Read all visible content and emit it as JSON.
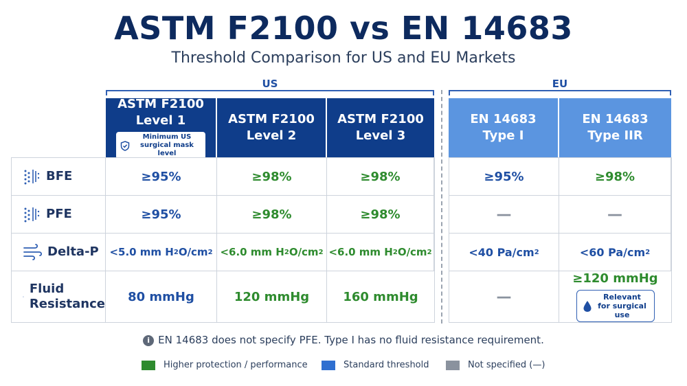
{
  "title": "ASTM F2100 vs EN 14683",
  "subtitle": "Threshold Comparison for US and EU Markets",
  "groups": {
    "us": "US",
    "eu": "EU"
  },
  "headers": [
    {
      "line1": "ASTM F2100",
      "line2": "Level 1",
      "badge": "Minimum US surgical mask level"
    },
    {
      "line1": "ASTM F2100",
      "line2": "Level 2"
    },
    {
      "line1": "ASTM F2100",
      "line2": "Level 3"
    },
    {
      "line1": "EN 14683",
      "line2": "Type I"
    },
    {
      "line1": "EN 14683",
      "line2": "Type IIR"
    }
  ],
  "rows": [
    {
      "label": "BFE",
      "icon": "particles-icon",
      "values": [
        "≥95%",
        "≥98%",
        "≥98%",
        "≥95%",
        "≥98%"
      ]
    },
    {
      "label": "PFE",
      "icon": "particles-icon",
      "values": [
        "≥95%",
        "≥98%",
        "≥98%",
        "—",
        "—"
      ]
    },
    {
      "label": "Delta-P",
      "icon": "airflow-icon",
      "values": [
        {
          "a": "<5.0 mm H",
          "sub": "2",
          "b": "O/cm",
          "sup": "2"
        },
        {
          "a": "<6.0 mm H",
          "sub": "2",
          "b": "O/cm",
          "sup": "2"
        },
        {
          "a": "<6.0 mm H",
          "sub": "2",
          "b": "O/cm",
          "sup": "2"
        },
        {
          "a": "<40 Pa/cm",
          "sup": "2"
        },
        {
          "a": "<60 Pa/cm",
          "sup": "2"
        }
      ]
    },
    {
      "label_line1": "Fluid",
      "label_line2": "Resistance",
      "icon": "droplet-icon",
      "values": [
        "80 mmHg",
        "120 mmHg",
        "160 mmHg",
        "—",
        "≥120 mmHg"
      ],
      "eu_badge": "Relevant for surgical use"
    }
  ],
  "note": "EN 14683 does not specify PFE. Type I has no fluid resistance requirement.",
  "legend": [
    {
      "label": "Higher protection / performance",
      "color": "#2e8b2e"
    },
    {
      "label": "Standard threshold",
      "color": "#2f6fd0"
    },
    {
      "label": "Not specified (—)",
      "color": "#8a929e"
    }
  ],
  "colors": {
    "us_header": "#0f3d8a",
    "eu_header": "#5b95e0",
    "green": "#2e8b2e",
    "blue": "#1f4fa3"
  }
}
